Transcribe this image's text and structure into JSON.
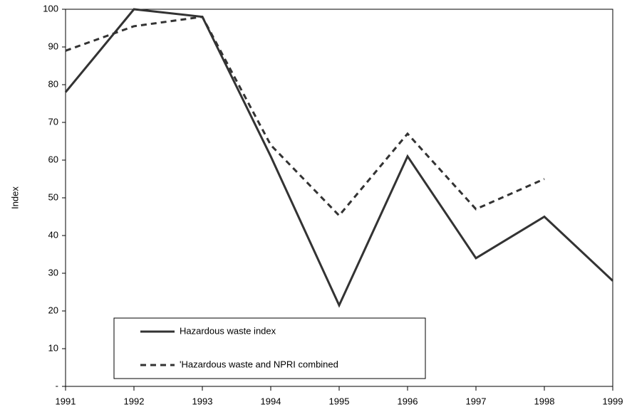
{
  "chart_data": {
    "type": "line",
    "x": [
      1991,
      1992,
      1993,
      1994,
      1995,
      1996,
      1997,
      1998,
      1999
    ],
    "series": [
      {
        "name": "Hazardous waste index",
        "color": "#333333",
        "line_style": "solid",
        "values": [
          78,
          100,
          98,
          61,
          21.5,
          61,
          34,
          45,
          28
        ]
      },
      {
        "name": "'Hazardous waste and NPRI combined",
        "color": "#333333",
        "line_style": "dashed",
        "values": [
          89,
          95.5,
          98,
          64,
          45.3,
          67,
          47,
          55,
          null
        ]
      }
    ],
    "y_label": "Index",
    "xlim": [
      1991,
      1999
    ],
    "xticks": [
      1991,
      1992,
      1993,
      1994,
      1995,
      1996,
      1997,
      1998,
      1999
    ],
    "ylim": [
      0,
      100
    ],
    "yticks": [
      {
        "value": 0,
        "label": "-"
      },
      10,
      20,
      30,
      40,
      50,
      60,
      70,
      80,
      90,
      100
    ],
    "grid": false
  }
}
